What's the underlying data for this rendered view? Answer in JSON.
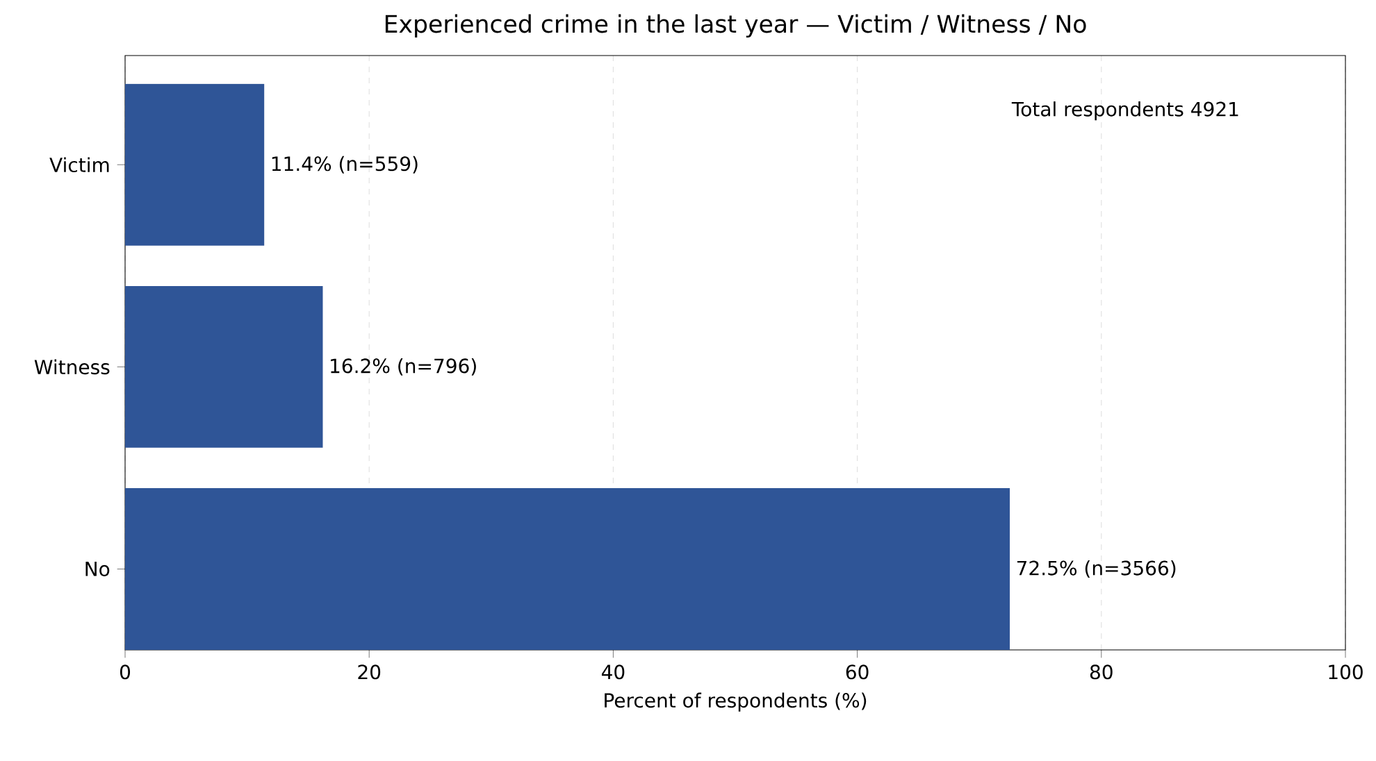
{
  "chart_data": {
    "type": "bar",
    "orientation": "horizontal",
    "title": "Experienced crime in the last year — Victim / Witness / No",
    "xlabel": "Percent of respondents (%)",
    "categories": [
      "Victim",
      "Witness",
      "No"
    ],
    "values": [
      11.4,
      16.2,
      72.5
    ],
    "value_labels": [
      "11.4% (n=559)",
      "16.2% (n=796)",
      "72.5% (n=3566)"
    ],
    "color": "#2f5597",
    "xlim": [
      0,
      100
    ],
    "xticks": [
      0,
      20,
      40,
      60,
      80,
      100
    ],
    "grid": "x",
    "annotations": [
      "Total respondents 4921"
    ]
  }
}
